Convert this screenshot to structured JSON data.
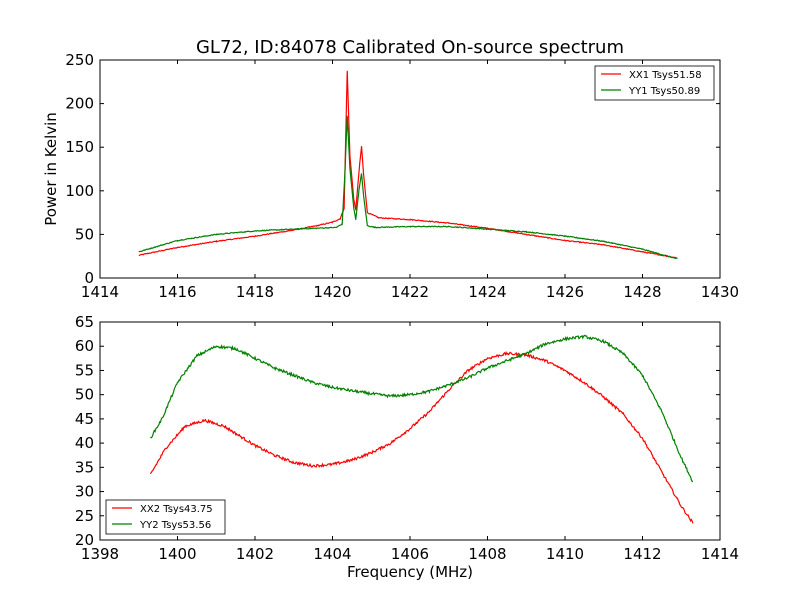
{
  "chart_data": [
    {
      "type": "line",
      "title": "GL72, ID:84078 Calibrated On-source spectrum",
      "xlabel": "",
      "ylabel": "Power in Kelvin",
      "xlim": [
        1414,
        1430
      ],
      "ylim": [
        0,
        250
      ],
      "xticks": [
        1414,
        1416,
        1418,
        1420,
        1422,
        1424,
        1426,
        1428,
        1430
      ],
      "yticks": [
        0,
        50,
        100,
        150,
        200,
        250
      ],
      "legend_position": "top-right",
      "series": [
        {
          "name": "XX1 Tsys51.58",
          "color": "#ff0000",
          "points": [
            [
              1415,
              26
            ],
            [
              1416,
              35
            ],
            [
              1417,
              42
            ],
            [
              1418,
              48
            ],
            [
              1419,
              55
            ],
            [
              1419.6,
              60
            ],
            [
              1420.0,
              64
            ],
            [
              1420.2,
              68
            ],
            [
              1420.3,
              80
            ],
            [
              1420.38,
              238
            ],
            [
              1420.45,
              140
            ],
            [
              1420.55,
              90
            ],
            [
              1420.6,
              78
            ],
            [
              1420.7,
              130
            ],
            [
              1420.75,
              151
            ],
            [
              1420.8,
              120
            ],
            [
              1420.9,
              75
            ],
            [
              1421.2,
              69
            ],
            [
              1422,
              67
            ],
            [
              1423,
              63
            ],
            [
              1424,
              57
            ],
            [
              1425,
              50
            ],
            [
              1426,
              43
            ],
            [
              1427,
              38
            ],
            [
              1428,
              30
            ],
            [
              1428.9,
              23
            ]
          ]
        },
        {
          "name": "YY1 Tsys50.89",
          "color": "#008000",
          "points": [
            [
              1415,
              30
            ],
            [
              1416,
              43
            ],
            [
              1417,
              50
            ],
            [
              1418,
              54
            ],
            [
              1419,
              56
            ],
            [
              1420.1,
              58
            ],
            [
              1420.25,
              62
            ],
            [
              1420.32,
              120
            ],
            [
              1420.38,
              186
            ],
            [
              1420.45,
              125
            ],
            [
              1420.55,
              80
            ],
            [
              1420.6,
              67
            ],
            [
              1420.68,
              100
            ],
            [
              1420.75,
              120
            ],
            [
              1420.8,
              95
            ],
            [
              1420.9,
              60
            ],
            [
              1421.1,
              58
            ],
            [
              1422,
              59
            ],
            [
              1423,
              59
            ],
            [
              1424,
              56
            ],
            [
              1425,
              53
            ],
            [
              1426,
              48
            ],
            [
              1427,
              42
            ],
            [
              1428,
              33
            ],
            [
              1428.9,
              22
            ]
          ]
        }
      ]
    },
    {
      "type": "line",
      "title": "",
      "xlabel": "Frequency (MHz)",
      "ylabel": "",
      "xlim": [
        1398,
        1414
      ],
      "ylim": [
        20,
        65
      ],
      "xticks": [
        1398,
        1400,
        1402,
        1404,
        1406,
        1408,
        1410,
        1412,
        1414
      ],
      "yticks": [
        20,
        25,
        30,
        35,
        40,
        45,
        50,
        55,
        60,
        65
      ],
      "legend_position": "bottom-left",
      "series": [
        {
          "name": "XX2 Tsys43.75",
          "color": "#ff0000",
          "points": [
            [
              1399.3,
              33.5
            ],
            [
              1399.7,
              39
            ],
            [
              1400.2,
              43.5
            ],
            [
              1400.7,
              44.7
            ],
            [
              1401.2,
              43.5
            ],
            [
              1402,
              39.5
            ],
            [
              1402.5,
              37.5
            ],
            [
              1403,
              36
            ],
            [
              1403.5,
              35.3
            ],
            [
              1404,
              35.6
            ],
            [
              1404.5,
              36.5
            ],
            [
              1405,
              38
            ],
            [
              1405.5,
              40
            ],
            [
              1406,
              43
            ],
            [
              1406.5,
              46.5
            ],
            [
              1407,
              51
            ],
            [
              1407.5,
              55
            ],
            [
              1408,
              57.5
            ],
            [
              1408.5,
              58.5
            ],
            [
              1409,
              58.2
            ],
            [
              1409.5,
              57
            ],
            [
              1410,
              55
            ],
            [
              1410.5,
              52.5
            ],
            [
              1411,
              49.5
            ],
            [
              1411.5,
              46
            ],
            [
              1412,
              41
            ],
            [
              1412.5,
              34
            ],
            [
              1413,
              27
            ],
            [
              1413.3,
              23.5
            ]
          ]
        },
        {
          "name": "YY2 Tsys53.56",
          "color": "#008000",
          "points": [
            [
              1399.3,
              41
            ],
            [
              1399.6,
              45
            ],
            [
              1400,
              52.5
            ],
            [
              1400.5,
              58
            ],
            [
              1401,
              60
            ],
            [
              1401.5,
              59.5
            ],
            [
              1402,
              57.5
            ],
            [
              1402.5,
              55.5
            ],
            [
              1403,
              54
            ],
            [
              1403.5,
              52.5
            ],
            [
              1404,
              51.5
            ],
            [
              1404.5,
              50.8
            ],
            [
              1405,
              50.2
            ],
            [
              1405.5,
              49.7
            ],
            [
              1406,
              50
            ],
            [
              1406.5,
              50.7
            ],
            [
              1407,
              52
            ],
            [
              1407.5,
              53.5
            ],
            [
              1408,
              55.5
            ],
            [
              1408.5,
              57
            ],
            [
              1409,
              58.5
            ],
            [
              1409.5,
              60.5
            ],
            [
              1410,
              61.5
            ],
            [
              1410.5,
              62
            ],
            [
              1411,
              61
            ],
            [
              1411.5,
              58.5
            ],
            [
              1412,
              54
            ],
            [
              1412.5,
              46.5
            ],
            [
              1413,
              37
            ],
            [
              1413.3,
              32
            ]
          ]
        }
      ]
    }
  ]
}
